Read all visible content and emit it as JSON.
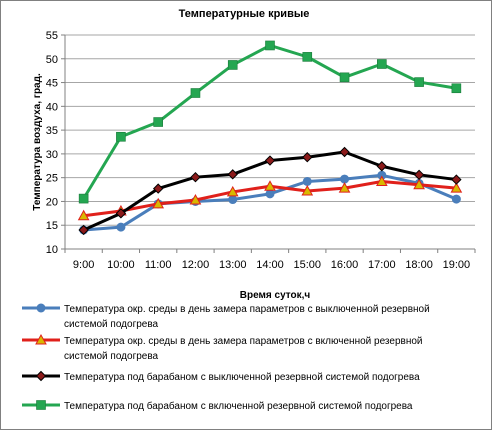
{
  "chart_data": {
    "type": "line",
    "title": "Температурные кривые",
    "xlabel": "Время суток,ч",
    "ylabel": "Температура воздуха, град.",
    "ylim": [
      10,
      55
    ],
    "yticks": [
      10,
      15,
      20,
      25,
      30,
      35,
      40,
      45,
      50,
      55
    ],
    "grid": "horizontal",
    "legend_position": "bottom",
    "categories": [
      "9:00",
      "10:00",
      "11:00",
      "12:00",
      "13:00",
      "14:00",
      "15:00",
      "16:00",
      "17:00",
      "18:00",
      "19:00"
    ],
    "series": [
      {
        "name_lines": [
          "Температура окр. среды в день замера параметров с выключенной резервной",
          "системой подогрева"
        ],
        "color": "#4a7ebb",
        "marker": "circle",
        "values": [
          14,
          14.6,
          19.5,
          20,
          20.4,
          21.6,
          24.2,
          24.7,
          25.5,
          23.8,
          20.5
        ]
      },
      {
        "name_lines": [
          "Температура окр. среды в день замера параметров с включенной резервной",
          "системой подогрева"
        ],
        "color": "#e0201b",
        "marker": "triangle",
        "values": [
          17,
          18,
          19.5,
          20.3,
          22,
          23.2,
          22.2,
          22.8,
          24.2,
          23.5,
          22.8
        ]
      },
      {
        "name_lines": [
          "Температура под барабаном с выключенной резервной системой подогрева"
        ],
        "color": "#000000",
        "marker": "diamond",
        "values": [
          14,
          17.5,
          22.7,
          25.1,
          25.7,
          28.6,
          29.3,
          30.4,
          27.4,
          25.6,
          24.6
        ]
      },
      {
        "name_lines": [
          "Температура под барабаном с включенной резервной системой подогрева"
        ],
        "color": "#24a651",
        "marker": "square",
        "values": [
          20.6,
          33.6,
          36.7,
          42.8,
          48.7,
          52.8,
          50.4,
          46.1,
          48.9,
          45.1,
          43.8
        ]
      }
    ]
  }
}
